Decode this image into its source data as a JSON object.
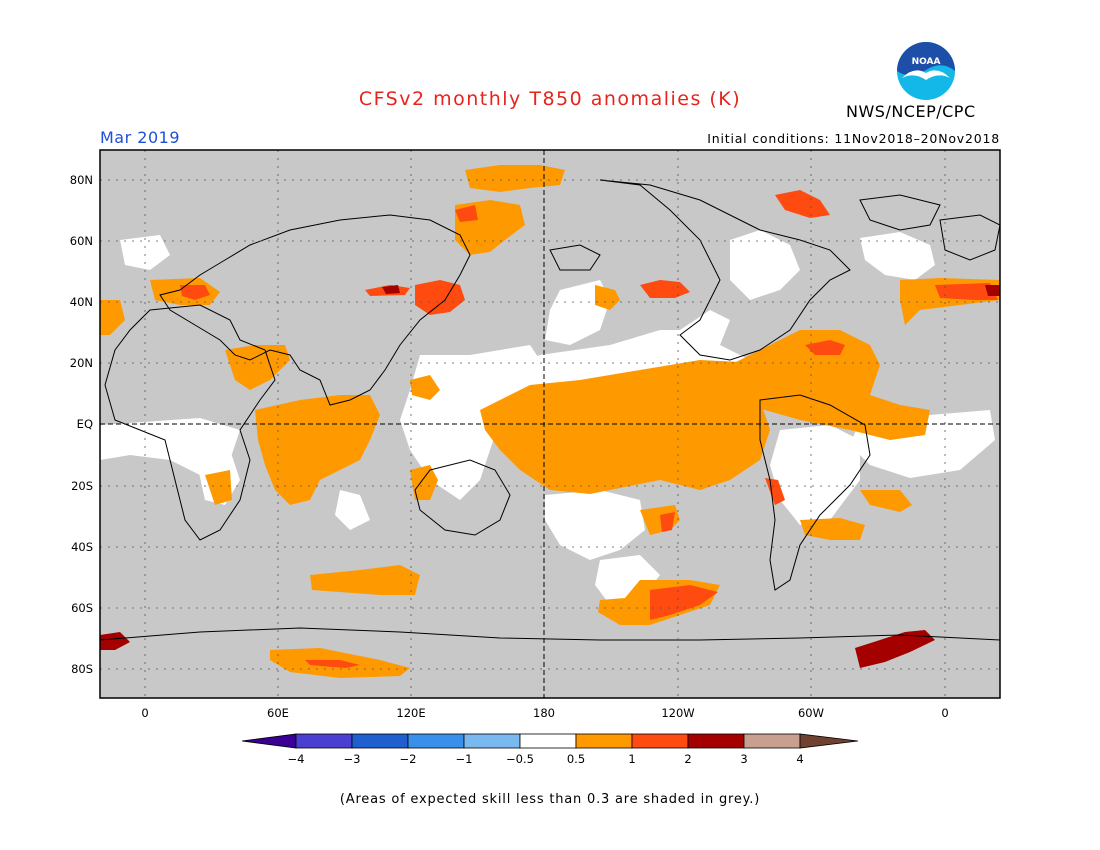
{
  "header": {
    "title": "CFSv2 monthly T850 anomalies (K)",
    "agency": "NWS/NCEP/CPC",
    "month": "Mar 2019",
    "initial_conditions": "Initial conditions: 11Nov2018–20Nov2018"
  },
  "logo": {
    "text": "NOAA",
    "colors": {
      "ring": "#14b8e8",
      "body": "#1d4fa8",
      "gull": "#ffffff"
    }
  },
  "map": {
    "projection": "equirectangular",
    "lon_range": [
      -20,
      380
    ],
    "lat_range": [
      -90,
      90
    ],
    "background_color": "#c8c8c8",
    "lat_labels": [
      "80N",
      "60N",
      "40N",
      "20N",
      "EQ",
      "20S",
      "40S",
      "60S",
      "80S"
    ],
    "lon_labels": [
      "0",
      "60E",
      "120E",
      "180",
      "120W",
      "60W",
      "0"
    ],
    "gridlines": "dotted",
    "reference_lines": [
      "equator",
      "dateline"
    ]
  },
  "colorbar": {
    "labels": [
      "−4",
      "−3",
      "−2",
      "−1",
      "−0.5",
      "0.5",
      "1",
      "2",
      "3",
      "4"
    ],
    "colors": [
      "#3a0096",
      "#4a3fd0",
      "#1f5fd0",
      "#3a8fea",
      "#7ab8f0",
      "#ffffff",
      "#ff9900",
      "#ff4a10",
      "#a50000",
      "#c8a090",
      "#704030"
    ]
  },
  "footnote": "(Areas of expected skill less than 0.3 are shaded in grey.)"
}
